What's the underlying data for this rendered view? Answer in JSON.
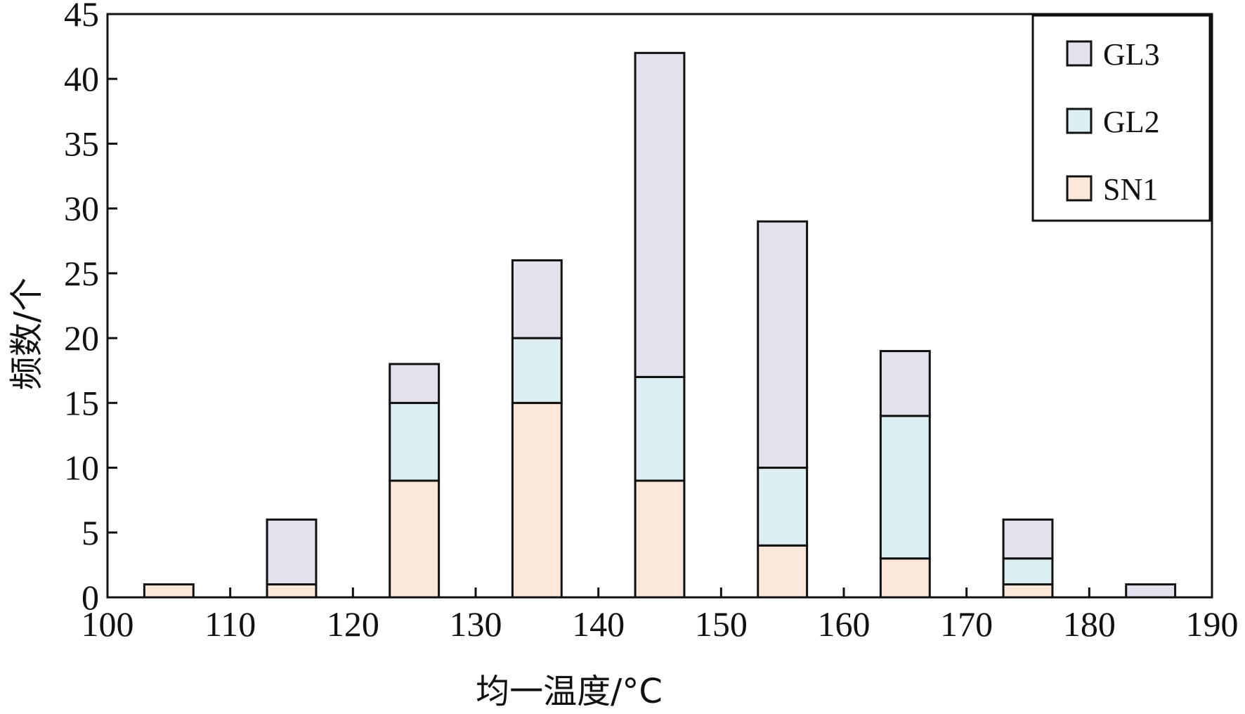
{
  "chart_data": {
    "type": "bar",
    "stacked": true,
    "x": [
      105,
      115,
      125,
      135,
      145,
      155,
      165,
      175,
      185
    ],
    "series": [
      {
        "name": "SN1",
        "color": "#fce8da",
        "values": [
          1,
          1,
          9,
          15,
          9,
          4,
          3,
          1,
          0
        ]
      },
      {
        "name": "GL2",
        "color": "#dceef2",
        "values": [
          0,
          0,
          6,
          5,
          8,
          6,
          11,
          2,
          0
        ]
      },
      {
        "name": "GL3",
        "color": "#e4e0ec",
        "values": [
          0,
          5,
          3,
          6,
          25,
          19,
          5,
          3,
          1
        ]
      }
    ],
    "xlabel": "均一温度/°C",
    "ylabel": "频数/个",
    "xlim": [
      100,
      190
    ],
    "ylim": [
      0,
      45
    ],
    "xticks": [
      "100",
      "110",
      "120",
      "130",
      "140",
      "150",
      "160",
      "170",
      "180",
      "190"
    ],
    "yticks": [
      "0",
      "5",
      "10",
      "15",
      "20",
      "25",
      "30",
      "35",
      "40",
      "45"
    ],
    "bar_width": 4,
    "grid": false,
    "legend_position": "top-right",
    "legend_order": [
      "GL3",
      "GL2",
      "SN1"
    ]
  }
}
